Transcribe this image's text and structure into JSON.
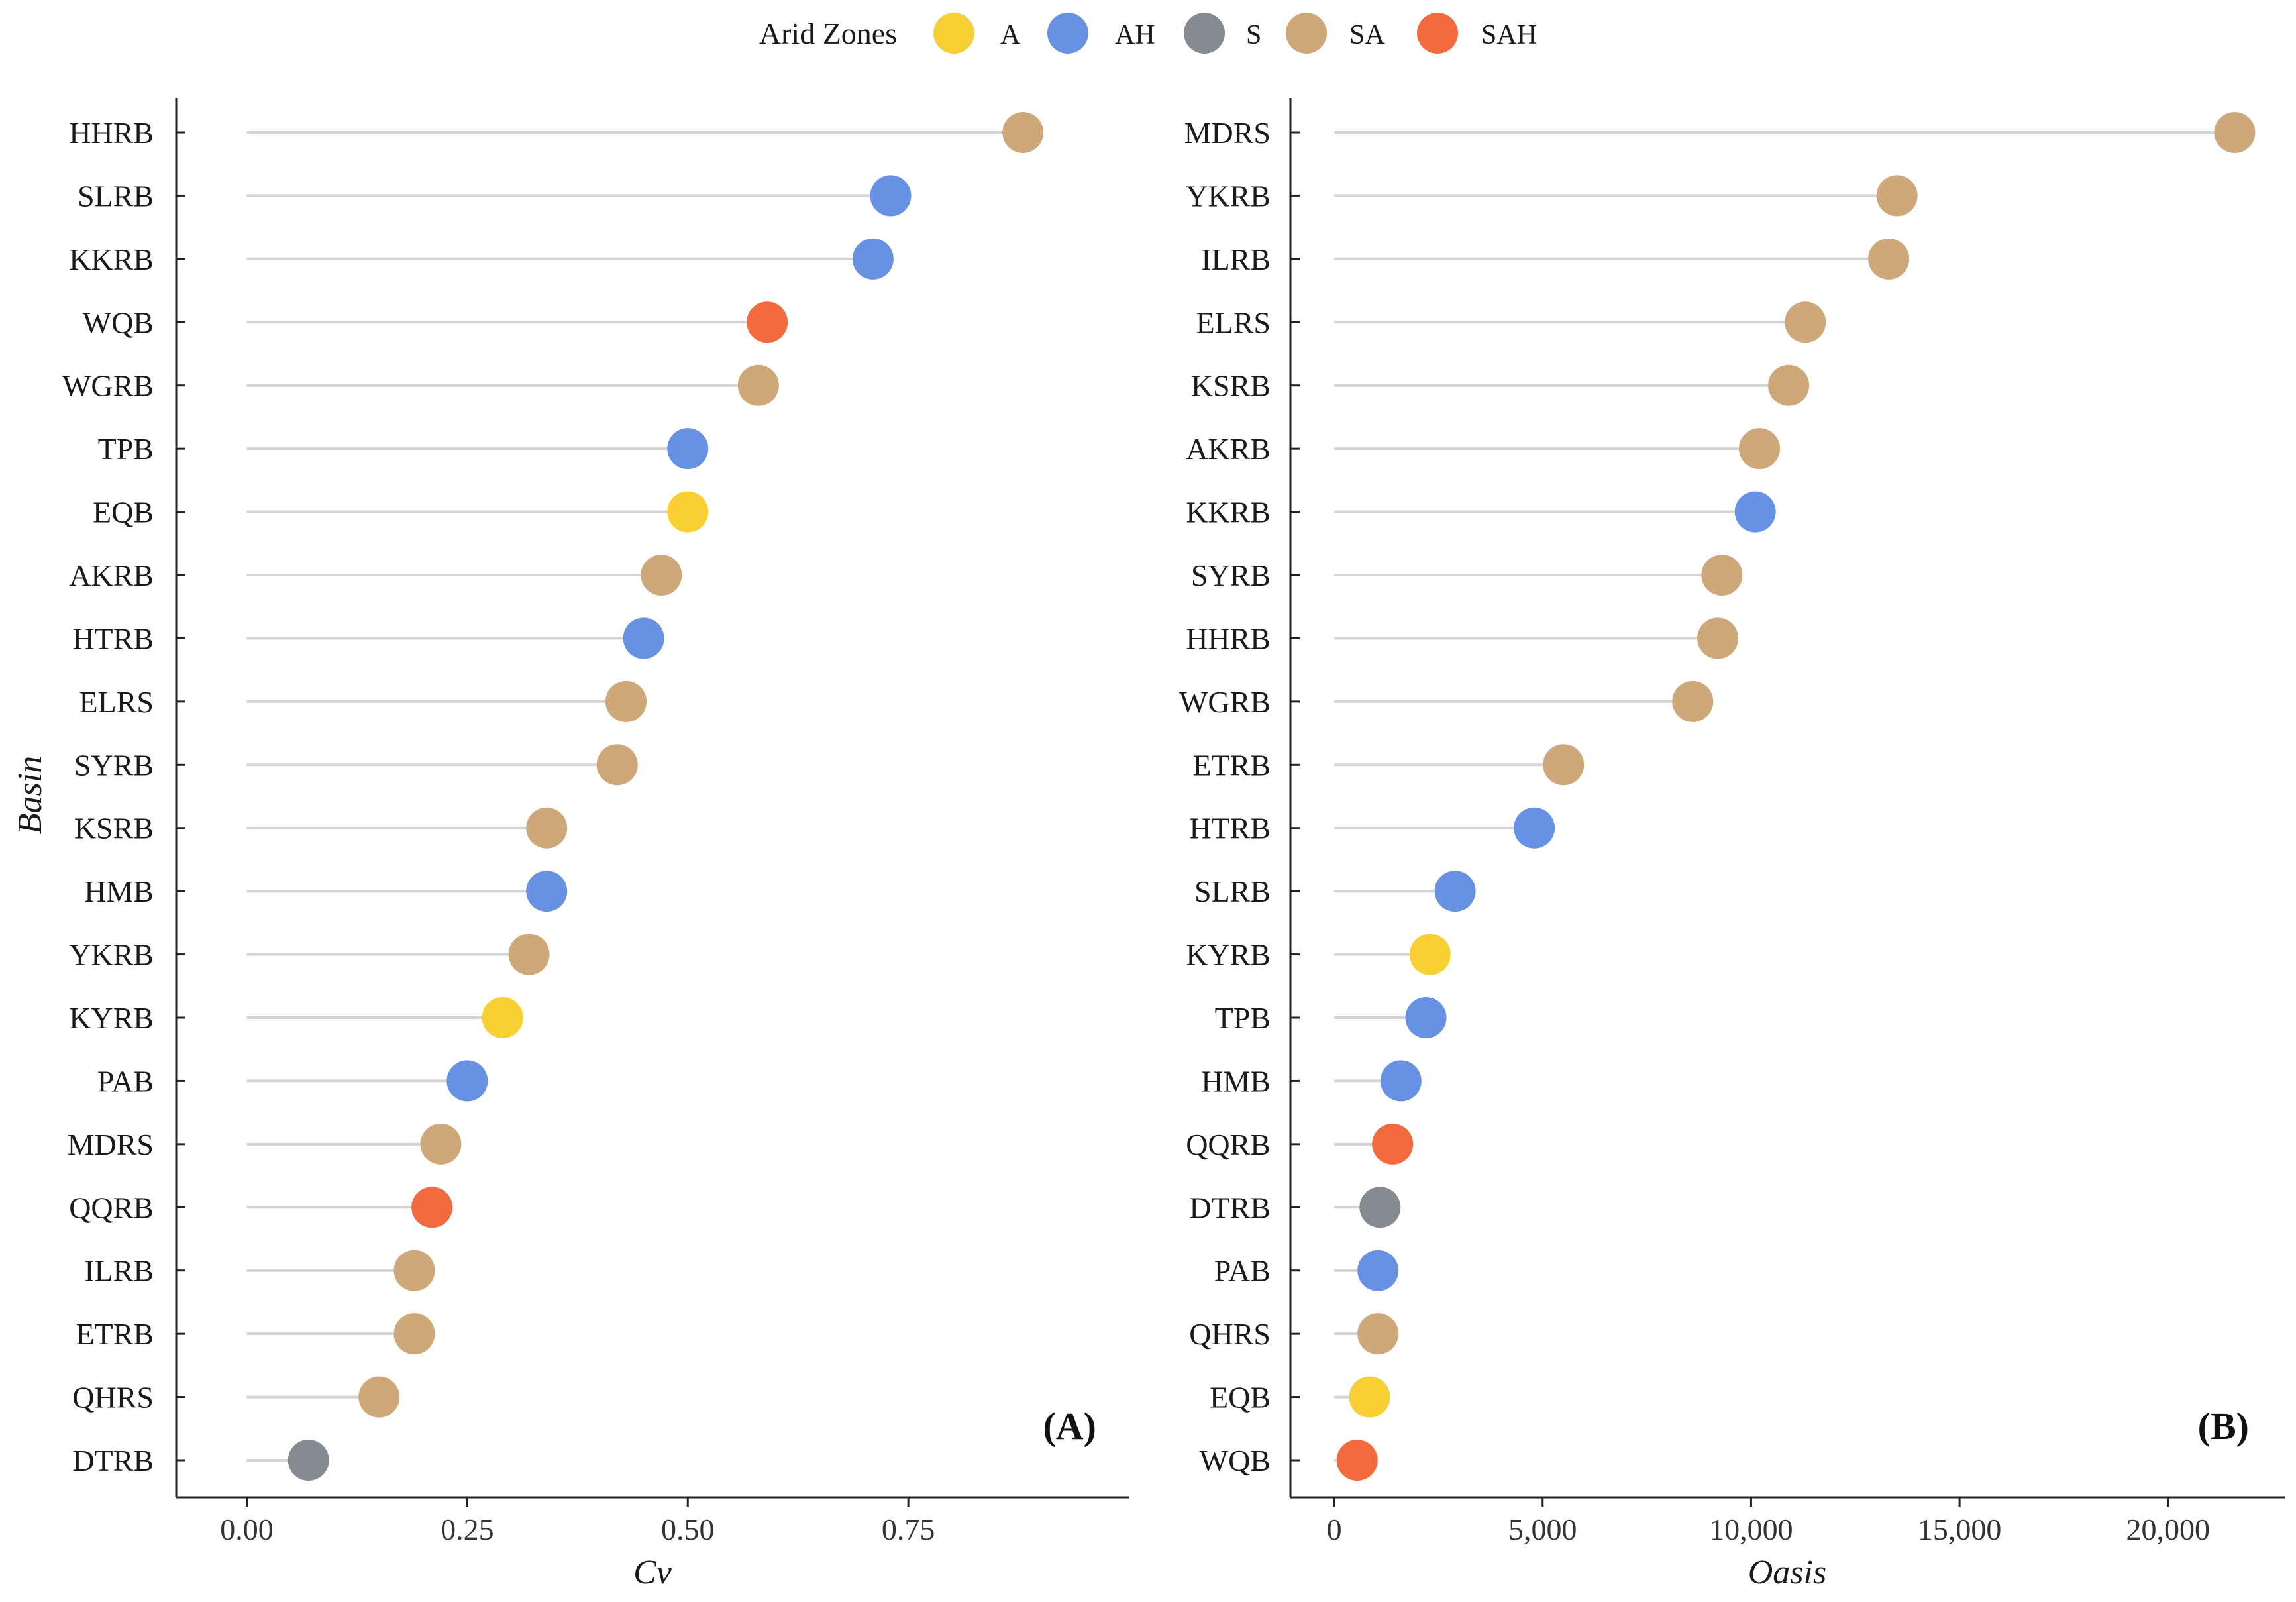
{
  "legend": {
    "title": "Arid Zones",
    "items": [
      {
        "key": "A",
        "label": "A",
        "color": "#F9D033"
      },
      {
        "key": "AH",
        "label": "AH",
        "color": "#6792E3"
      },
      {
        "key": "S",
        "label": "S",
        "color": "#858990"
      },
      {
        "key": "SA",
        "label": "SA",
        "color": "#CFA87A"
      },
      {
        "key": "SAH",
        "label": "SAH",
        "color": "#F36A3E"
      }
    ]
  },
  "chart_data": [
    {
      "type": "scatter",
      "subtype": "lollipop",
      "panel_label": "(A)",
      "xlabel": "Cv",
      "ylabel": "Basin",
      "xlim": [
        -0.08,
        1.0
      ],
      "xticks": [
        0,
        0.25,
        0.5,
        0.75
      ],
      "xtick_labels": [
        "0.00",
        "0.25",
        "0.50",
        "0.75"
      ],
      "categories": [
        "HHRB",
        "SLRB",
        "KKRB",
        "WQB",
        "WGRB",
        "TPB",
        "EQB",
        "AKRB",
        "HTRB",
        "ELRS",
        "SYRB",
        "KSRB",
        "HMB",
        "YKRB",
        "KYRB",
        "PAB",
        "MDRS",
        "QQRB",
        "ILRB",
        "ETRB",
        "QHRS",
        "DTRB"
      ],
      "values": [
        0.88,
        0.73,
        0.71,
        0.59,
        0.58,
        0.5,
        0.5,
        0.47,
        0.45,
        0.43,
        0.42,
        0.34,
        0.34,
        0.32,
        0.29,
        0.25,
        0.22,
        0.21,
        0.19,
        0.19,
        0.15,
        0.07
      ],
      "zones": [
        "SA",
        "AH",
        "AH",
        "SAH",
        "SA",
        "AH",
        "A",
        "SA",
        "AH",
        "SA",
        "SA",
        "SA",
        "AH",
        "SA",
        "A",
        "AH",
        "SA",
        "SAH",
        "SA",
        "SA",
        "SA",
        "S"
      ]
    },
    {
      "type": "scatter",
      "subtype": "lollipop",
      "panel_label": "(B)",
      "xlabel": "Oasis",
      "ylabel": "",
      "xlim": [
        -1050,
        22800
      ],
      "xticks": [
        0,
        5000,
        10000,
        15000,
        20000
      ],
      "xtick_labels": [
        "0",
        "5,000",
        "10,000",
        "15,000",
        "20,000"
      ],
      "categories": [
        "MDRS",
        "YKRB",
        "ILRB",
        "ELRS",
        "KSRB",
        "AKRB",
        "KKRB",
        "SYRB",
        "HHRB",
        "WGRB",
        "ETRB",
        "HTRB",
        "SLRB",
        "KYRB",
        "TPB",
        "HMB",
        "QQRB",
        "DTRB",
        "PAB",
        "QHRS",
        "EQB",
        "WQB"
      ],
      "values": [
        21600,
        13500,
        13300,
        11300,
        10900,
        10200,
        10100,
        9300,
        9200,
        8600,
        5500,
        4800,
        2900,
        2300,
        2200,
        1600,
        1400,
        1100,
        1050,
        1050,
        850,
        550
      ],
      "zones": [
        "SA",
        "SA",
        "SA",
        "SA",
        "SA",
        "SA",
        "AH",
        "SA",
        "SA",
        "SA",
        "SA",
        "AH",
        "AH",
        "A",
        "AH",
        "AH",
        "SAH",
        "S",
        "AH",
        "SA",
        "A",
        "SAH"
      ]
    }
  ]
}
